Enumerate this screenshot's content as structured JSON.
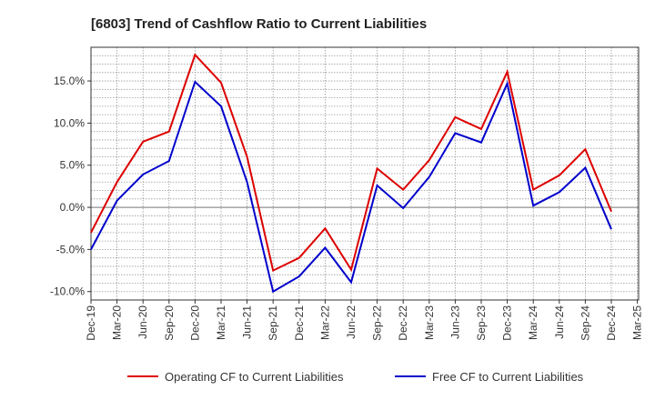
{
  "chart_data": {
    "type": "line",
    "title": "[6803]  Trend of Cashflow Ratio to Current Liabilities",
    "xlabel": "",
    "ylabel": "",
    "x": [
      "Dec-19",
      "Mar-20",
      "Jun-20",
      "Sep-20",
      "Dec-20",
      "Mar-21",
      "Jun-21",
      "Sep-21",
      "Dec-21",
      "Mar-22",
      "Jun-22",
      "Sep-22",
      "Dec-22",
      "Mar-23",
      "Jun-23",
      "Sep-23",
      "Dec-23",
      "Mar-24",
      "Jun-24",
      "Sep-24",
      "Dec-24",
      "Mar-25"
    ],
    "ylim": [
      -11,
      19
    ],
    "yticks": [
      -10,
      -5,
      0,
      5,
      10,
      15
    ],
    "ytick_labels": [
      "-10.0%",
      "-5.0%",
      "0.0%",
      "5.0%",
      "10.0%",
      "15.0%"
    ],
    "grid": true,
    "legend_position": "bottom",
    "series": [
      {
        "name": "Operating CF to Current Liabilities",
        "color": "#dd0000",
        "values": [
          -3.0,
          3.0,
          7.8,
          9.0,
          18.1,
          14.8,
          6.0,
          -7.5,
          -6.0,
          -2.5,
          -7.4,
          4.6,
          2.1,
          5.6,
          10.7,
          9.3,
          16.1,
          2.1,
          3.8,
          6.9,
          -0.5,
          null
        ]
      },
      {
        "name": "Free CF to Current Liabilities",
        "color": "#0000cc",
        "values": [
          -5.0,
          0.8,
          3.9,
          5.5,
          14.9,
          12.0,
          3.0,
          -10.0,
          -8.2,
          -4.8,
          -8.9,
          2.6,
          -0.1,
          3.6,
          8.8,
          7.7,
          14.7,
          0.2,
          1.8,
          4.7,
          -2.6,
          null
        ]
      }
    ]
  }
}
